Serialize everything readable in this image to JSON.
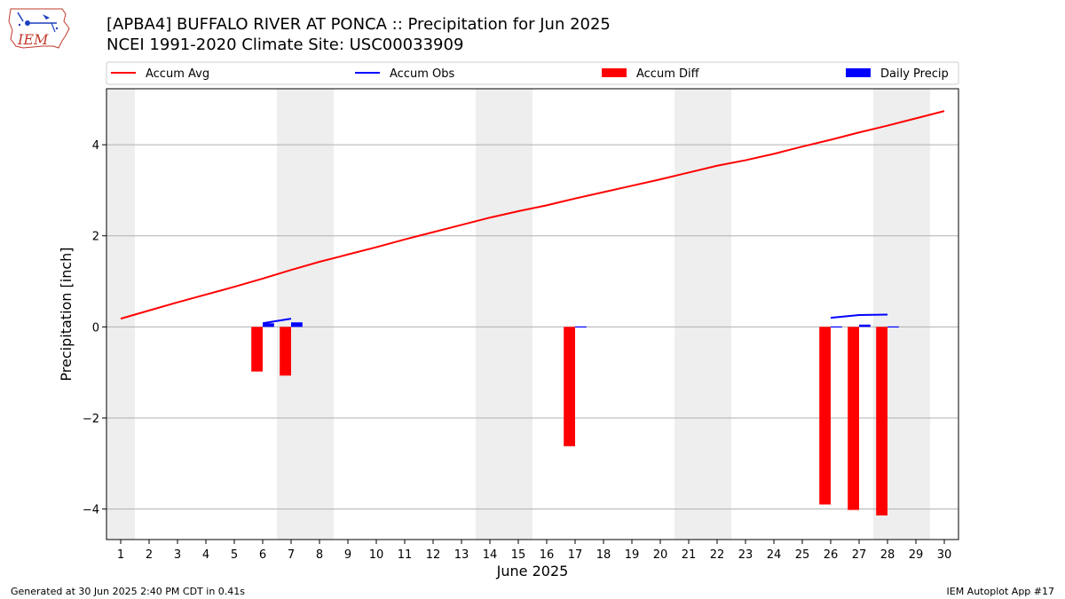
{
  "header": {
    "title_line1": "[APBA4] BUFFALO RIVER AT PONCA :: Precipitation for Jun 2025",
    "title_line2": "NCEI 1991-2020 Climate Site: USC00033909",
    "logo_text": "IEM"
  },
  "footer": {
    "left": "Generated at 30 Jun 2025 2:40 PM CDT in 0.41s",
    "right": "IEM Autoplot App #17"
  },
  "colors": {
    "avg": "#ff0000",
    "obs": "#0000ff",
    "diff": "#ff0000",
    "daily": "#0000ff",
    "weekend_shade": "#eeeeee",
    "grid": "#b0b0b0"
  },
  "chart_data": {
    "type": "bar",
    "xlabel": "June 2025",
    "ylabel": "Precipitation [inch]",
    "xlim": [
      0.5,
      30.5
    ],
    "ylim": [
      -4.67,
      5.23
    ],
    "grid": true,
    "legend_position": "top (above plot, 4 columns)",
    "x_ticks": [
      1,
      2,
      3,
      4,
      5,
      6,
      7,
      8,
      9,
      10,
      11,
      12,
      13,
      14,
      15,
      16,
      17,
      18,
      19,
      20,
      21,
      22,
      23,
      24,
      25,
      26,
      27,
      28,
      29,
      30
    ],
    "y_ticks": [
      -4,
      -2,
      0,
      2,
      4
    ],
    "weekend_days": [
      1,
      7,
      8,
      14,
      15,
      21,
      22,
      28,
      29
    ],
    "legend": [
      {
        "label": "Accum Avg",
        "kind": "line",
        "color": "#ff0000"
      },
      {
        "label": "Accum Obs",
        "kind": "line",
        "color": "#0000ff"
      },
      {
        "label": "Accum Diff",
        "kind": "bar",
        "color": "#ff0000"
      },
      {
        "label": "Daily Precip",
        "kind": "bar",
        "color": "#0000ff"
      }
    ],
    "series": [
      {
        "name": "Accum Avg",
        "type": "line",
        "x": [
          1,
          2,
          3,
          4,
          5,
          6,
          7,
          8,
          9,
          10,
          11,
          12,
          13,
          14,
          15,
          16,
          17,
          18,
          19,
          20,
          21,
          22,
          23,
          24,
          25,
          26,
          27,
          28,
          29,
          30
        ],
        "values": [
          0.18,
          0.36,
          0.54,
          0.71,
          0.88,
          1.06,
          1.25,
          1.43,
          1.59,
          1.75,
          1.92,
          2.08,
          2.24,
          2.4,
          2.54,
          2.67,
          2.82,
          2.96,
          3.1,
          3.24,
          3.39,
          3.54,
          3.66,
          3.8,
          3.96,
          4.11,
          4.27,
          4.42,
          4.58,
          4.74
        ]
      },
      {
        "name": "Accum Obs",
        "type": "line",
        "segments": [
          {
            "x": [
              6,
              7
            ],
            "values": [
              0.08,
              0.18
            ]
          },
          {
            "x": [
              26,
              27,
              28
            ],
            "values": [
              0.2,
              0.26,
              0.27
            ]
          }
        ]
      },
      {
        "name": "Accum Diff",
        "type": "bar",
        "x": [
          6,
          7,
          17,
          26,
          27,
          28
        ],
        "values": [
          -0.98,
          -1.07,
          -2.62,
          -3.9,
          -4.02,
          -4.14
        ]
      },
      {
        "name": "Daily Precip",
        "type": "bar",
        "x": [
          6,
          7,
          17,
          26,
          27,
          28
        ],
        "values": [
          0.08,
          0.1,
          0.01,
          0.01,
          0.05,
          0.01
        ]
      }
    ]
  }
}
